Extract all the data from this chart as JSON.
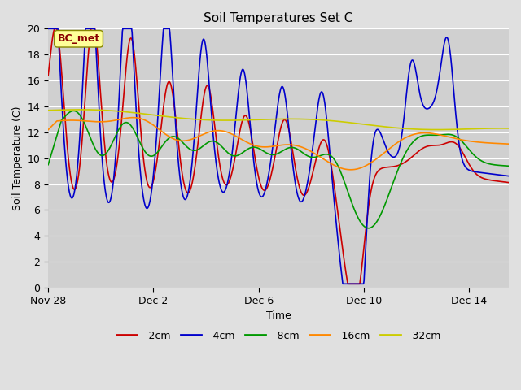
{
  "title": "Soil Temperatures Set C",
  "xlabel": "Time",
  "ylabel": "Soil Temperature (C)",
  "annotation": "BC_met",
  "ylim": [
    0,
    20
  ],
  "xlim_days": [
    0,
    17.5
  ],
  "tick_positions": [
    0,
    4,
    8,
    12,
    16
  ],
  "tick_labels": [
    "Nov 28",
    "Dec 2",
    "Dec 6",
    "Dec 10",
    "Dec 14"
  ],
  "yticks": [
    0,
    2,
    4,
    6,
    8,
    10,
    12,
    14,
    16,
    18,
    20
  ],
  "colors": {
    "-2cm": "#cc0000",
    "-4cm": "#0000cc",
    "-8cm": "#009900",
    "-16cm": "#ff8800",
    "-32cm": "#cccc00"
  },
  "legend_colors": [
    "#cc0000",
    "#0000cc",
    "#009900",
    "#ff8800",
    "#cccc00"
  ],
  "legend_labels": [
    "-2cm",
    "-4cm",
    "-8cm",
    "-16cm",
    "-32cm"
  ],
  "bg_color": "#e0e0e0",
  "plot_bg_color": "#d0d0d0",
  "annotation_bg": "#ffff99",
  "annotation_text_color": "#880000",
  "linewidth": 1.2
}
